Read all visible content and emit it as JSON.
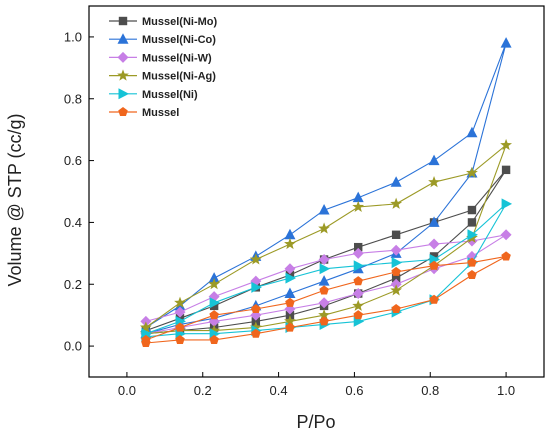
{
  "chart_data": {
    "type": "line",
    "title": "",
    "xlabel": "P/Po",
    "ylabel": "Volume @ STP (cc/g)",
    "xlim": [
      -0.1,
      1.1
    ],
    "ylim": [
      -0.1,
      1.1
    ],
    "xticks": [
      "0.0",
      "0.2",
      "0.4",
      "0.6",
      "0.8",
      "1.0"
    ],
    "yticks": [
      "0.0",
      "0.2",
      "0.4",
      "0.6",
      "0.8",
      "1.0"
    ],
    "grid": false,
    "legend_position": "top-left",
    "series": [
      {
        "name": "Mussel(Ni-Mo)",
        "color": "#4d4d4d",
        "marker": "square",
        "adsorption": [
          [
            0.05,
            0.04
          ],
          [
            0.14,
            0.05
          ],
          [
            0.23,
            0.06
          ],
          [
            0.34,
            0.08
          ],
          [
            0.43,
            0.1
          ],
          [
            0.52,
            0.13
          ],
          [
            0.61,
            0.17
          ],
          [
            0.71,
            0.22
          ],
          [
            0.81,
            0.29
          ],
          [
            0.91,
            0.4
          ],
          [
            1.0,
            0.57
          ]
        ],
        "desorption": [
          [
            1.0,
            0.57
          ],
          [
            0.91,
            0.44
          ],
          [
            0.81,
            0.4
          ],
          [
            0.71,
            0.36
          ],
          [
            0.61,
            0.32
          ],
          [
            0.52,
            0.28
          ],
          [
            0.43,
            0.23
          ],
          [
            0.34,
            0.19
          ],
          [
            0.23,
            0.13
          ],
          [
            0.14,
            0.09
          ],
          [
            0.05,
            0.05
          ]
        ]
      },
      {
        "name": "Mussel(Ni-Co)",
        "color": "#2b73d8",
        "marker": "triangle-up",
        "adsorption": [
          [
            0.05,
            0.04
          ],
          [
            0.14,
            0.07
          ],
          [
            0.23,
            0.09
          ],
          [
            0.34,
            0.13
          ],
          [
            0.43,
            0.17
          ],
          [
            0.52,
            0.21
          ],
          [
            0.61,
            0.25
          ],
          [
            0.71,
            0.3
          ],
          [
            0.81,
            0.4
          ],
          [
            0.91,
            0.56
          ],
          [
            1.0,
            0.98
          ]
        ],
        "desorption": [
          [
            1.0,
            0.98
          ],
          [
            0.91,
            0.69
          ],
          [
            0.81,
            0.6
          ],
          [
            0.71,
            0.53
          ],
          [
            0.61,
            0.48
          ],
          [
            0.52,
            0.44
          ],
          [
            0.43,
            0.36
          ],
          [
            0.34,
            0.29
          ],
          [
            0.23,
            0.22
          ],
          [
            0.14,
            0.13
          ],
          [
            0.05,
            0.06
          ]
        ]
      },
      {
        "name": "Mussel(Ni-W)",
        "color": "#c77fe6",
        "marker": "diamond",
        "adsorption": [
          [
            0.05,
            0.04
          ],
          [
            0.14,
            0.06
          ],
          [
            0.23,
            0.08
          ],
          [
            0.34,
            0.1
          ],
          [
            0.43,
            0.12
          ],
          [
            0.52,
            0.14
          ],
          [
            0.61,
            0.17
          ],
          [
            0.71,
            0.2
          ],
          [
            0.81,
            0.25
          ],
          [
            0.91,
            0.29
          ],
          [
            1.0,
            0.36
          ]
        ],
        "desorption": [
          [
            1.0,
            0.36
          ],
          [
            0.91,
            0.34
          ],
          [
            0.81,
            0.33
          ],
          [
            0.71,
            0.31
          ],
          [
            0.61,
            0.3
          ],
          [
            0.52,
            0.28
          ],
          [
            0.43,
            0.25
          ],
          [
            0.34,
            0.21
          ],
          [
            0.23,
            0.16
          ],
          [
            0.14,
            0.11
          ],
          [
            0.05,
            0.08
          ]
        ]
      },
      {
        "name": "Mussel(Ni-Ag)",
        "color": "#9c9a26",
        "marker": "star",
        "adsorption": [
          [
            0.05,
            0.04
          ],
          [
            0.14,
            0.05
          ],
          [
            0.23,
            0.05
          ],
          [
            0.34,
            0.06
          ],
          [
            0.43,
            0.08
          ],
          [
            0.52,
            0.1
          ],
          [
            0.61,
            0.13
          ],
          [
            0.71,
            0.18
          ],
          [
            0.81,
            0.26
          ],
          [
            0.91,
            0.35
          ],
          [
            1.0,
            0.65
          ]
        ],
        "desorption": [
          [
            1.0,
            0.65
          ],
          [
            0.91,
            0.56
          ],
          [
            0.81,
            0.53
          ],
          [
            0.71,
            0.46
          ],
          [
            0.61,
            0.45
          ],
          [
            0.52,
            0.38
          ],
          [
            0.43,
            0.33
          ],
          [
            0.34,
            0.28
          ],
          [
            0.23,
            0.2
          ],
          [
            0.14,
            0.14
          ],
          [
            0.05,
            0.06
          ]
        ]
      },
      {
        "name": "Mussel(Ni)",
        "color": "#16c3d6",
        "marker": "triangle-right",
        "adsorption": [
          [
            0.05,
            0.03
          ],
          [
            0.14,
            0.04
          ],
          [
            0.23,
            0.04
          ],
          [
            0.34,
            0.05
          ],
          [
            0.43,
            0.06
          ],
          [
            0.52,
            0.07
          ],
          [
            0.61,
            0.08
          ],
          [
            0.71,
            0.11
          ],
          [
            0.81,
            0.15
          ],
          [
            0.91,
            0.27
          ],
          [
            1.0,
            0.46
          ]
        ],
        "desorption": [
          [
            1.0,
            0.46
          ],
          [
            0.91,
            0.36
          ],
          [
            0.81,
            0.28
          ],
          [
            0.71,
            0.27
          ],
          [
            0.61,
            0.26
          ],
          [
            0.52,
            0.25
          ],
          [
            0.43,
            0.22
          ],
          [
            0.34,
            0.19
          ],
          [
            0.23,
            0.14
          ],
          [
            0.14,
            0.08
          ],
          [
            0.05,
            0.04
          ]
        ]
      },
      {
        "name": "Mussel",
        "color": "#f0661d",
        "marker": "pentagon",
        "adsorption": [
          [
            0.05,
            0.01
          ],
          [
            0.14,
            0.02
          ],
          [
            0.23,
            0.02
          ],
          [
            0.34,
            0.04
          ],
          [
            0.43,
            0.06
          ],
          [
            0.52,
            0.08
          ],
          [
            0.61,
            0.1
          ],
          [
            0.71,
            0.12
          ],
          [
            0.81,
            0.15
          ],
          [
            0.91,
            0.23
          ],
          [
            1.0,
            0.29
          ]
        ],
        "desorption": [
          [
            1.0,
            0.29
          ],
          [
            0.91,
            0.27
          ],
          [
            0.81,
            0.26
          ],
          [
            0.71,
            0.24
          ],
          [
            0.61,
            0.21
          ],
          [
            0.52,
            0.18
          ],
          [
            0.43,
            0.14
          ],
          [
            0.34,
            0.12
          ],
          [
            0.23,
            0.1
          ],
          [
            0.14,
            0.06
          ],
          [
            0.05,
            0.02
          ]
        ]
      }
    ]
  }
}
